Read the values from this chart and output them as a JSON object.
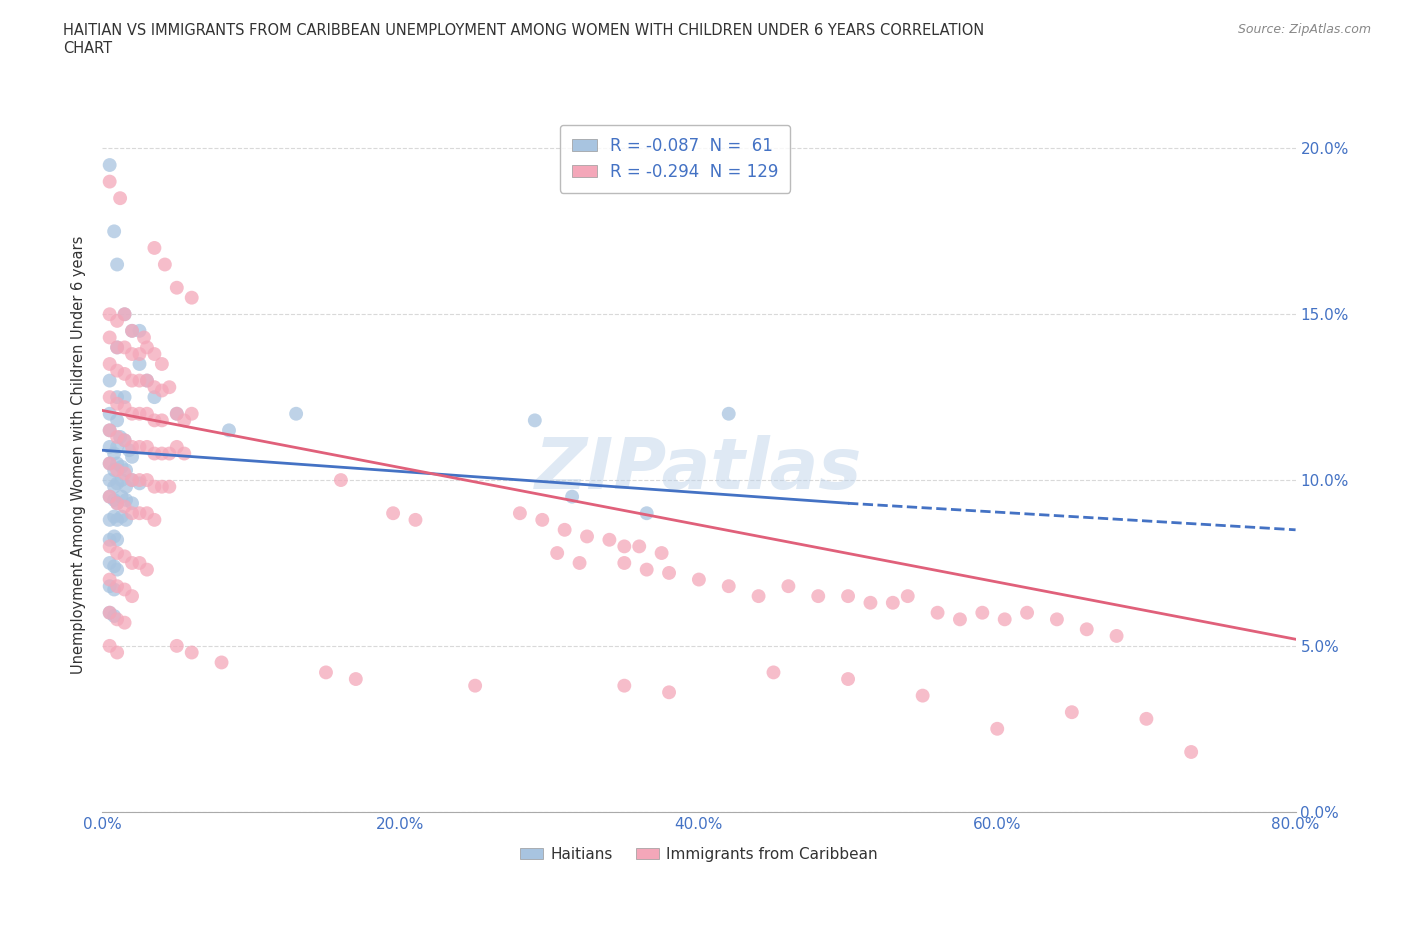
{
  "title_line1": "HAITIAN VS IMMIGRANTS FROM CARIBBEAN UNEMPLOYMENT AMONG WOMEN WITH CHILDREN UNDER 6 YEARS CORRELATION",
  "title_line2": "CHART",
  "source": "Source: ZipAtlas.com",
  "xlabel_ticks": [
    "0.0%",
    "",
    "",
    "",
    "",
    "",
    "",
    "",
    "20.0%",
    "",
    "",
    "",
    "",
    "",
    "",
    "",
    "40.0%",
    "",
    "",
    "",
    "",
    "",
    "",
    "",
    "60.0%",
    "",
    "",
    "",
    "",
    "",
    "",
    "",
    "80.0%"
  ],
  "xlabel_tick_vals": [
    0.0,
    0.2,
    0.4,
    0.6,
    0.8
  ],
  "xlabel_tick_labels": [
    "0.0%",
    "20.0%",
    "40.0%",
    "60.0%",
    "80.0%"
  ],
  "ylabel_ticks": [
    "0.0%",
    "5.0%",
    "10.0%",
    "15.0%",
    "20.0%"
  ],
  "ylabel_label": "Unemployment Among Women with Children Under 6 years",
  "xlim": [
    0,
    0.8
  ],
  "ylim": [
    0,
    0.215
  ],
  "R_haitian": -0.087,
  "N_haitian": 61,
  "R_caribbean": -0.294,
  "N_caribbean": 129,
  "color_haitian": "#a8c4e0",
  "color_caribbean": "#f4a7b9",
  "line_color_haitian": "#4472c4",
  "line_color_caribbean": "#e0607a",
  "legend_labels": [
    "Haitians",
    "Immigrants from Caribbean"
  ],
  "watermark": "ZIPatlas",
  "haitian_line": [
    0.0,
    0.109,
    0.5,
    0.093
  ],
  "haitian_line_ext": [
    0.5,
    0.093,
    0.8,
    0.085
  ],
  "caribbean_line": [
    0.0,
    0.121,
    0.8,
    0.052
  ],
  "haitian_scatter": [
    [
      0.005,
      0.195
    ],
    [
      0.008,
      0.175
    ],
    [
      0.01,
      0.165
    ],
    [
      0.005,
      0.13
    ],
    [
      0.01,
      0.14
    ],
    [
      0.015,
      0.15
    ],
    [
      0.02,
      0.145
    ],
    [
      0.025,
      0.145
    ],
    [
      0.005,
      0.12
    ],
    [
      0.01,
      0.125
    ],
    [
      0.015,
      0.125
    ],
    [
      0.005,
      0.115
    ],
    [
      0.01,
      0.118
    ],
    [
      0.012,
      0.113
    ],
    [
      0.005,
      0.11
    ],
    [
      0.008,
      0.108
    ],
    [
      0.01,
      0.11
    ],
    [
      0.015,
      0.112
    ],
    [
      0.018,
      0.109
    ],
    [
      0.005,
      0.105
    ],
    [
      0.008,
      0.103
    ],
    [
      0.01,
      0.105
    ],
    [
      0.013,
      0.104
    ],
    [
      0.016,
      0.103
    ],
    [
      0.02,
      0.107
    ],
    [
      0.005,
      0.1
    ],
    [
      0.008,
      0.098
    ],
    [
      0.01,
      0.099
    ],
    [
      0.013,
      0.1
    ],
    [
      0.016,
      0.098
    ],
    [
      0.02,
      0.1
    ],
    [
      0.025,
      0.099
    ],
    [
      0.005,
      0.095
    ],
    [
      0.008,
      0.094
    ],
    [
      0.01,
      0.093
    ],
    [
      0.013,
      0.095
    ],
    [
      0.016,
      0.094
    ],
    [
      0.02,
      0.093
    ],
    [
      0.005,
      0.088
    ],
    [
      0.008,
      0.089
    ],
    [
      0.01,
      0.088
    ],
    [
      0.013,
      0.089
    ],
    [
      0.016,
      0.088
    ],
    [
      0.005,
      0.082
    ],
    [
      0.008,
      0.083
    ],
    [
      0.01,
      0.082
    ],
    [
      0.005,
      0.075
    ],
    [
      0.008,
      0.074
    ],
    [
      0.01,
      0.073
    ],
    [
      0.005,
      0.068
    ],
    [
      0.008,
      0.067
    ],
    [
      0.005,
      0.06
    ],
    [
      0.008,
      0.059
    ],
    [
      0.025,
      0.135
    ],
    [
      0.03,
      0.13
    ],
    [
      0.035,
      0.125
    ],
    [
      0.05,
      0.12
    ],
    [
      0.085,
      0.115
    ],
    [
      0.13,
      0.12
    ],
    [
      0.29,
      0.118
    ],
    [
      0.315,
      0.095
    ],
    [
      0.365,
      0.09
    ],
    [
      0.42,
      0.12
    ]
  ],
  "caribbean_scatter": [
    [
      0.005,
      0.19
    ],
    [
      0.012,
      0.185
    ],
    [
      0.035,
      0.17
    ],
    [
      0.042,
      0.165
    ],
    [
      0.05,
      0.158
    ],
    [
      0.06,
      0.155
    ],
    [
      0.005,
      0.15
    ],
    [
      0.01,
      0.148
    ],
    [
      0.015,
      0.15
    ],
    [
      0.02,
      0.145
    ],
    [
      0.028,
      0.143
    ],
    [
      0.005,
      0.143
    ],
    [
      0.01,
      0.14
    ],
    [
      0.015,
      0.14
    ],
    [
      0.02,
      0.138
    ],
    [
      0.025,
      0.138
    ],
    [
      0.03,
      0.14
    ],
    [
      0.035,
      0.138
    ],
    [
      0.04,
      0.135
    ],
    [
      0.005,
      0.135
    ],
    [
      0.01,
      0.133
    ],
    [
      0.015,
      0.132
    ],
    [
      0.02,
      0.13
    ],
    [
      0.025,
      0.13
    ],
    [
      0.03,
      0.13
    ],
    [
      0.035,
      0.128
    ],
    [
      0.04,
      0.127
    ],
    [
      0.045,
      0.128
    ],
    [
      0.005,
      0.125
    ],
    [
      0.01,
      0.123
    ],
    [
      0.015,
      0.122
    ],
    [
      0.02,
      0.12
    ],
    [
      0.025,
      0.12
    ],
    [
      0.03,
      0.12
    ],
    [
      0.035,
      0.118
    ],
    [
      0.04,
      0.118
    ],
    [
      0.05,
      0.12
    ],
    [
      0.055,
      0.118
    ],
    [
      0.06,
      0.12
    ],
    [
      0.005,
      0.115
    ],
    [
      0.01,
      0.113
    ],
    [
      0.015,
      0.112
    ],
    [
      0.02,
      0.11
    ],
    [
      0.025,
      0.11
    ],
    [
      0.03,
      0.11
    ],
    [
      0.035,
      0.108
    ],
    [
      0.04,
      0.108
    ],
    [
      0.045,
      0.108
    ],
    [
      0.05,
      0.11
    ],
    [
      0.055,
      0.108
    ],
    [
      0.005,
      0.105
    ],
    [
      0.01,
      0.103
    ],
    [
      0.015,
      0.102
    ],
    [
      0.02,
      0.1
    ],
    [
      0.025,
      0.1
    ],
    [
      0.03,
      0.1
    ],
    [
      0.035,
      0.098
    ],
    [
      0.04,
      0.098
    ],
    [
      0.045,
      0.098
    ],
    [
      0.005,
      0.095
    ],
    [
      0.01,
      0.093
    ],
    [
      0.015,
      0.092
    ],
    [
      0.02,
      0.09
    ],
    [
      0.025,
      0.09
    ],
    [
      0.03,
      0.09
    ],
    [
      0.035,
      0.088
    ],
    [
      0.16,
      0.1
    ],
    [
      0.195,
      0.09
    ],
    [
      0.21,
      0.088
    ],
    [
      0.28,
      0.09
    ],
    [
      0.295,
      0.088
    ],
    [
      0.31,
      0.085
    ],
    [
      0.325,
      0.083
    ],
    [
      0.34,
      0.082
    ],
    [
      0.35,
      0.08
    ],
    [
      0.36,
      0.08
    ],
    [
      0.375,
      0.078
    ],
    [
      0.305,
      0.078
    ],
    [
      0.32,
      0.075
    ],
    [
      0.35,
      0.075
    ],
    [
      0.365,
      0.073
    ],
    [
      0.38,
      0.072
    ],
    [
      0.4,
      0.07
    ],
    [
      0.42,
      0.068
    ],
    [
      0.44,
      0.065
    ],
    [
      0.46,
      0.068
    ],
    [
      0.48,
      0.065
    ],
    [
      0.5,
      0.065
    ],
    [
      0.515,
      0.063
    ],
    [
      0.53,
      0.063
    ],
    [
      0.54,
      0.065
    ],
    [
      0.56,
      0.06
    ],
    [
      0.575,
      0.058
    ],
    [
      0.59,
      0.06
    ],
    [
      0.605,
      0.058
    ],
    [
      0.62,
      0.06
    ],
    [
      0.64,
      0.058
    ],
    [
      0.66,
      0.055
    ],
    [
      0.68,
      0.053
    ],
    [
      0.005,
      0.08
    ],
    [
      0.01,
      0.078
    ],
    [
      0.015,
      0.077
    ],
    [
      0.02,
      0.075
    ],
    [
      0.025,
      0.075
    ],
    [
      0.03,
      0.073
    ],
    [
      0.005,
      0.07
    ],
    [
      0.01,
      0.068
    ],
    [
      0.015,
      0.067
    ],
    [
      0.02,
      0.065
    ],
    [
      0.005,
      0.06
    ],
    [
      0.01,
      0.058
    ],
    [
      0.015,
      0.057
    ],
    [
      0.005,
      0.05
    ],
    [
      0.01,
      0.048
    ],
    [
      0.05,
      0.05
    ],
    [
      0.06,
      0.048
    ],
    [
      0.08,
      0.045
    ],
    [
      0.15,
      0.042
    ],
    [
      0.17,
      0.04
    ],
    [
      0.25,
      0.038
    ],
    [
      0.35,
      0.038
    ],
    [
      0.38,
      0.036
    ],
    [
      0.45,
      0.042
    ],
    [
      0.5,
      0.04
    ],
    [
      0.55,
      0.035
    ],
    [
      0.6,
      0.025
    ],
    [
      0.65,
      0.03
    ],
    [
      0.7,
      0.028
    ],
    [
      0.73,
      0.018
    ]
  ]
}
